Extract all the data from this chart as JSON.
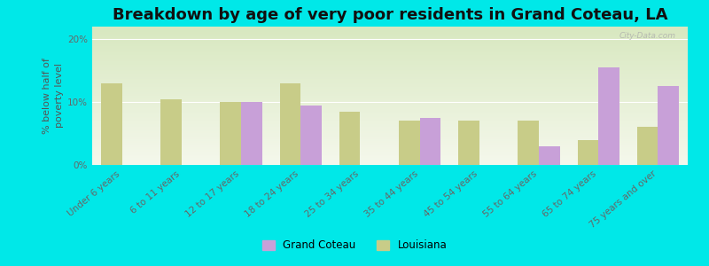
{
  "title": "Breakdown by age of very poor residents in Grand Coteau, LA",
  "ylabel": "% below half of\npoverty level",
  "categories": [
    "Under 6 years",
    "6 to 11 years",
    "12 to 17 years",
    "18 to 24 years",
    "25 to 34 years",
    "35 to 44 years",
    "45 to 54 years",
    "55 to 64 years",
    "65 to 74 years",
    "75 years and over"
  ],
  "grand_coteau": [
    0,
    0,
    10.0,
    9.5,
    0,
    7.5,
    0,
    3.0,
    15.5,
    12.5
  ],
  "louisiana": [
    13.0,
    10.5,
    10.0,
    13.0,
    8.5,
    7.0,
    7.0,
    7.0,
    4.0,
    6.0
  ],
  "gc_color": "#c8a0d8",
  "la_color": "#c8cc88",
  "background_color": "#00e8e8",
  "plot_bg_top": "#d8e8c0",
  "plot_bg_bottom": "#f5f8ec",
  "bar_width": 0.35,
  "ylim": [
    0,
    22
  ],
  "yticks": [
    0,
    10,
    20
  ],
  "ytick_labels": [
    "0%",
    "10%",
    "20%"
  ],
  "title_fontsize": 13,
  "axis_label_fontsize": 8,
  "tick_fontsize": 7.5,
  "legend_gc_label": "Grand Coteau",
  "legend_la_label": "Louisiana",
  "watermark": "City-Data.com"
}
